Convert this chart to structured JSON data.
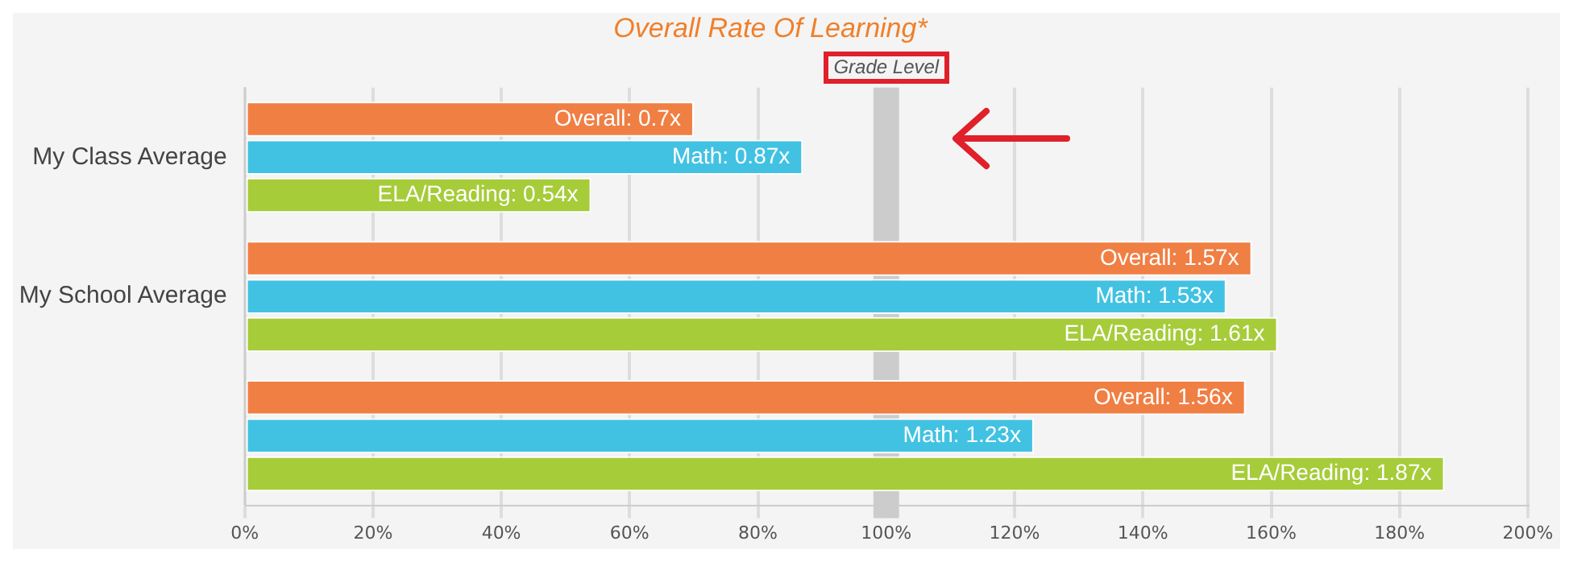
{
  "chart_data": {
    "type": "bar",
    "orientation": "horizontal",
    "title": "Overall Rate Of Learning*",
    "categories": [
      "My Class Average",
      "My School Average",
      null
    ],
    "series": [
      {
        "color": "#f07f44",
        "values": [
          0.7,
          1.57,
          1.56
        ],
        "value_labels": [
          "Overall: 0.7x",
          "Overall: 1.57x",
          "Overall: 1.56x"
        ]
      },
      {
        "color": "#42c2e2",
        "values": [
          0.87,
          1.53,
          1.23
        ],
        "value_labels": [
          "Math: 0.87x",
          "Math: 1.53x",
          "Math: 1.23x"
        ]
      },
      {
        "color": "#a6cc3a",
        "values": [
          0.54,
          1.61,
          1.87
        ],
        "value_labels": [
          "ELA/Reading: 0.54x",
          "ELA/Reading: 1.61x",
          "ELA/Reading: 1.87x"
        ]
      }
    ],
    "xlim": [
      0,
      2
    ],
    "xticks": [
      {
        "value": 0,
        "label": "0%"
      },
      {
        "value": 0.2,
        "label": "20%"
      },
      {
        "value": 0.4,
        "label": "40%"
      },
      {
        "value": 0.6,
        "label": "60%"
      },
      {
        "value": 0.8,
        "label": "80%"
      },
      {
        "value": 1,
        "label": "100%"
      },
      {
        "value": 1.2,
        "label": "120%"
      },
      {
        "value": 1.4,
        "label": "140%"
      },
      {
        "value": 1.6,
        "label": "160%"
      },
      {
        "value": 1.8,
        "label": "180%"
      },
      {
        "value": 2,
        "label": "200%"
      }
    ],
    "bands": [
      {
        "axis": "x",
        "from": 0.98,
        "to": 1.02,
        "label": "Grade Level",
        "color": "#cccccc"
      }
    ],
    "grid": "x",
    "legend": false
  }
}
